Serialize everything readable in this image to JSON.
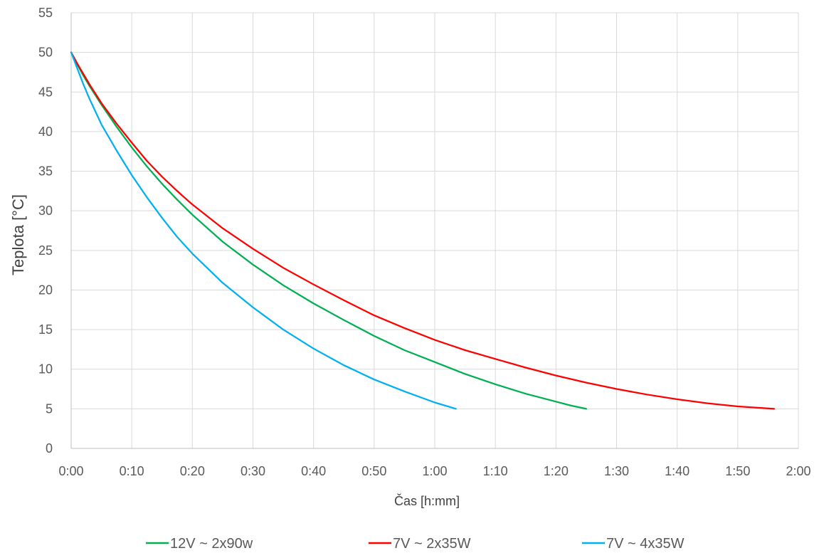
{
  "chart_data": {
    "type": "line",
    "title": "",
    "xlabel": "Čas [h:mm]",
    "ylabel": "Teplota  [°C]",
    "xlim": [
      0,
      120
    ],
    "ylim": [
      0,
      55
    ],
    "x_ticks": [
      {
        "value": 0,
        "label": "0:00"
      },
      {
        "value": 10,
        "label": "0:10"
      },
      {
        "value": 20,
        "label": "0:20"
      },
      {
        "value": 30,
        "label": "0:30"
      },
      {
        "value": 40,
        "label": "0:40"
      },
      {
        "value": 50,
        "label": "0:50"
      },
      {
        "value": 60,
        "label": "1:00"
      },
      {
        "value": 70,
        "label": "1:10"
      },
      {
        "value": 80,
        "label": "1:20"
      },
      {
        "value": 90,
        "label": "1:30"
      },
      {
        "value": 100,
        "label": "1:40"
      },
      {
        "value": 110,
        "label": "1:50"
      },
      {
        "value": 120,
        "label": "2:00"
      }
    ],
    "y_ticks": [
      {
        "value": 0,
        "label": "0"
      },
      {
        "value": 5,
        "label": "5"
      },
      {
        "value": 10,
        "label": "10"
      },
      {
        "value": 15,
        "label": "15"
      },
      {
        "value": 20,
        "label": "20"
      },
      {
        "value": 25,
        "label": "25"
      },
      {
        "value": 30,
        "label": "30"
      },
      {
        "value": 35,
        "label": "35"
      },
      {
        "value": 40,
        "label": "40"
      },
      {
        "value": 45,
        "label": "45"
      },
      {
        "value": 50,
        "label": "50"
      },
      {
        "value": 55,
        "label": "55"
      }
    ],
    "grid": true,
    "legend": "bottom",
    "series": [
      {
        "name": "12V ~ 2x90w",
        "color": "#00B050",
        "points": [
          [
            0,
            50
          ],
          [
            1,
            48.5
          ],
          [
            2,
            47.1
          ],
          [
            3,
            45.8
          ],
          [
            5,
            43.4
          ],
          [
            7.5,
            40.6
          ],
          [
            10,
            38.0
          ],
          [
            12.5,
            35.6
          ],
          [
            15,
            33.4
          ],
          [
            17.5,
            31.4
          ],
          [
            20,
            29.5
          ],
          [
            25,
            26.1
          ],
          [
            30,
            23.2
          ],
          [
            35,
            20.6
          ],
          [
            40,
            18.3
          ],
          [
            45,
            16.2
          ],
          [
            50,
            14.2
          ],
          [
            55,
            12.4
          ],
          [
            60,
            10.9
          ],
          [
            65,
            9.4
          ],
          [
            70,
            8.1
          ],
          [
            75,
            6.9
          ],
          [
            80,
            5.9
          ],
          [
            82.5,
            5.4
          ],
          [
            85,
            5.0
          ]
        ]
      },
      {
        "name": "7V ~ 2x35W",
        "color": "#FF0000",
        "points": [
          [
            0,
            50
          ],
          [
            1,
            48.6
          ],
          [
            2,
            47.3
          ],
          [
            3,
            46.0
          ],
          [
            5,
            43.6
          ],
          [
            7.5,
            41.0
          ],
          [
            10,
            38.6
          ],
          [
            12.5,
            36.3
          ],
          [
            15,
            34.3
          ],
          [
            17.5,
            32.5
          ],
          [
            20,
            30.8
          ],
          [
            25,
            27.8
          ],
          [
            30,
            25.2
          ],
          [
            35,
            22.8
          ],
          [
            40,
            20.7
          ],
          [
            45,
            18.7
          ],
          [
            50,
            16.8
          ],
          [
            55,
            15.2
          ],
          [
            60,
            13.7
          ],
          [
            65,
            12.4
          ],
          [
            70,
            11.3
          ],
          [
            75,
            10.2
          ],
          [
            80,
            9.2
          ],
          [
            85,
            8.3
          ],
          [
            90,
            7.5
          ],
          [
            95,
            6.8
          ],
          [
            100,
            6.2
          ],
          [
            105,
            5.7
          ],
          [
            110,
            5.3
          ],
          [
            116,
            5.0
          ]
        ]
      },
      {
        "name": "7V ~ 4x35W",
        "color": "#00B0F0",
        "points": [
          [
            0,
            50
          ],
          [
            1,
            48.0
          ],
          [
            2,
            46.0
          ],
          [
            3,
            44.2
          ],
          [
            5,
            40.9
          ],
          [
            7.5,
            37.6
          ],
          [
            10,
            34.5
          ],
          [
            12.5,
            31.7
          ],
          [
            15,
            29.1
          ],
          [
            17.5,
            26.7
          ],
          [
            20,
            24.6
          ],
          [
            25,
            20.9
          ],
          [
            30,
            17.8
          ],
          [
            35,
            15.0
          ],
          [
            40,
            12.6
          ],
          [
            45,
            10.5
          ],
          [
            50,
            8.7
          ],
          [
            55,
            7.2
          ],
          [
            60,
            5.8
          ],
          [
            63.5,
            5.0
          ]
        ]
      }
    ]
  }
}
